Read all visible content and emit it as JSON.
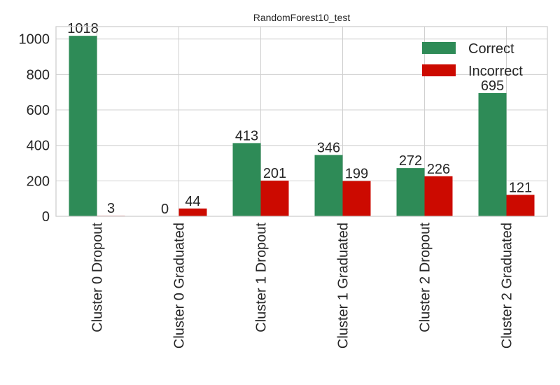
{
  "chart_data": {
    "type": "bar",
    "title": "RandomForest10_test",
    "xlabel": "",
    "ylabel": "",
    "categories": [
      "Cluster 0 Dropout",
      "Cluster 0 Graduated",
      "Cluster 1 Dropout",
      "Cluster 1 Graduated",
      "Cluster 2 Dropout",
      "Cluster 2 Graduated"
    ],
    "series": [
      {
        "name": "Correct",
        "color": "#2e8b57",
        "values": [
          1018,
          0,
          413,
          346,
          272,
          695
        ]
      },
      {
        "name": "Incorrect",
        "color": "#cc0a00",
        "values": [
          3,
          44,
          201,
          199,
          226,
          121
        ]
      }
    ],
    "ylim": [
      0,
      1070
    ],
    "yticks": [
      0,
      200,
      400,
      600,
      800,
      1000
    ],
    "grid": true,
    "legend_position": "top-right"
  }
}
